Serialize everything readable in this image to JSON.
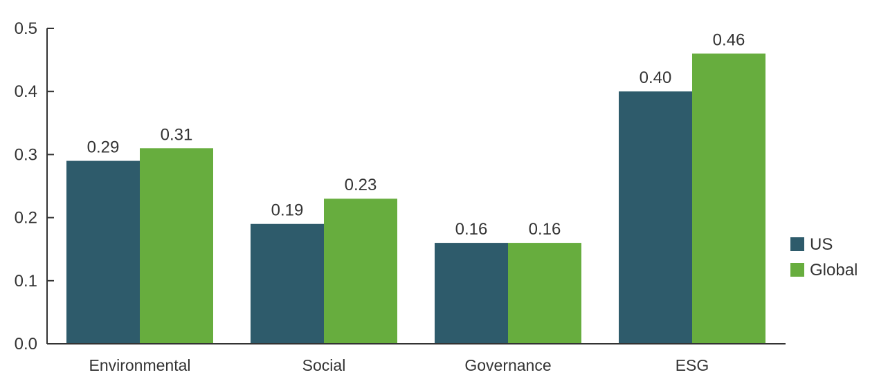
{
  "chart_data": {
    "type": "bar",
    "title": "",
    "xlabel": "",
    "ylabel": "",
    "categories": [
      "Environmental",
      "Social",
      "Governance",
      "ESG"
    ],
    "series": [
      {
        "name": "US",
        "values": [
          0.29,
          0.19,
          0.16,
          0.4
        ],
        "labels": [
          "0.29",
          "0.19",
          "0.16",
          "0.40"
        ],
        "color": "#2e5b6b"
      },
      {
        "name": "Global",
        "values": [
          0.31,
          0.23,
          0.16,
          0.46
        ],
        "labels": [
          "0.31",
          "0.23",
          "0.16",
          "0.46"
        ],
        "color": "#67ad3e"
      }
    ],
    "ylim": [
      0,
      0.5
    ],
    "yticks": [
      "0.0",
      "0.1",
      "0.2",
      "0.3",
      "0.4",
      "0.5"
    ],
    "grid": false,
    "legend": "right"
  }
}
